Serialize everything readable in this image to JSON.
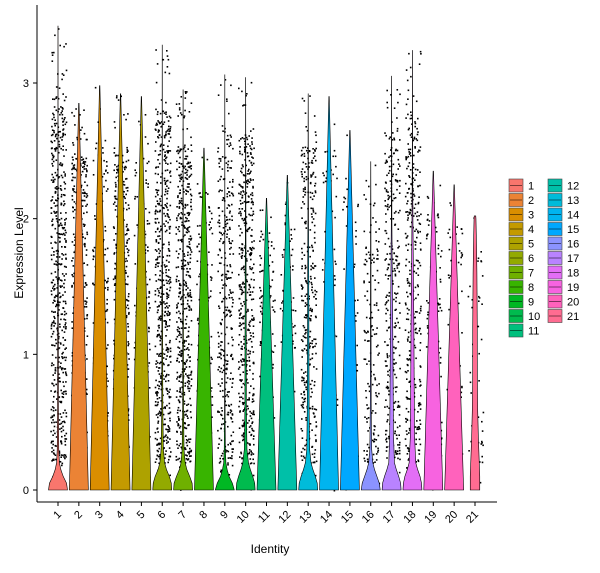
{
  "chart_data": {
    "type": "violin",
    "title": "",
    "xlabel": "Identity",
    "ylabel": "Expression Level",
    "ylim": [
      -0.1,
      3.5
    ],
    "yticks": [
      0,
      1,
      2,
      3
    ],
    "grid": false,
    "legend_position": "right",
    "categories": [
      "1",
      "2",
      "3",
      "4",
      "5",
      "6",
      "7",
      "8",
      "9",
      "10",
      "11",
      "12",
      "13",
      "14",
      "15",
      "16",
      "17",
      "18",
      "19",
      "20",
      "21"
    ],
    "colors": [
      "#F8766D",
      "#EB8335",
      "#DA8E00",
      "#C49A00",
      "#AEA200",
      "#93AA00",
      "#6FB000",
      "#38B400",
      "#00B823",
      "#00BB4E",
      "#00BF7D",
      "#00C0A8",
      "#00BBDA",
      "#00B4EF",
      "#00A8FF",
      "#8B93FF",
      "#B983FF",
      "#E36EF6",
      "#F763E0",
      "#FF62BC",
      "#FF6C91"
    ],
    "series": [
      {
        "name": "1",
        "max": 3.42,
        "violin": [
          [
            0,
            1
          ],
          [
            0.05,
            0.9
          ],
          [
            0.1,
            0.55
          ],
          [
            0.15,
            0.3
          ],
          [
            0.2,
            0.15
          ],
          [
            0.3,
            0.08
          ],
          [
            0.6,
            0.05
          ],
          [
            1.2,
            0.04
          ],
          [
            2,
            0.02
          ],
          [
            2.8,
            0.01
          ],
          [
            3.42,
            0.005
          ]
        ]
      },
      {
        "name": "2",
        "max": 2.85,
        "violin": [
          [
            0,
            1
          ],
          [
            2.85,
            0.02
          ]
        ]
      },
      {
        "name": "3",
        "max": 2.98,
        "violin": [
          [
            0,
            1
          ],
          [
            2.98,
            0.02
          ]
        ]
      },
      {
        "name": "4",
        "max": 2.92,
        "violin": [
          [
            0,
            1
          ],
          [
            2.92,
            0.02
          ]
        ]
      },
      {
        "name": "5",
        "max": 2.9,
        "violin": [
          [
            0,
            1
          ],
          [
            2.9,
            0.02
          ]
        ]
      },
      {
        "name": "6",
        "max": 3.28,
        "violin": [
          [
            0,
            1
          ],
          [
            0.05,
            0.95
          ],
          [
            0.1,
            0.75
          ],
          [
            0.15,
            0.45
          ],
          [
            0.2,
            0.25
          ],
          [
            0.3,
            0.12
          ],
          [
            0.6,
            0.06
          ],
          [
            1.2,
            0.04
          ],
          [
            2,
            0.02
          ],
          [
            3.28,
            0.005
          ]
        ]
      },
      {
        "name": "7",
        "max": 2.95,
        "violin": [
          [
            0,
            1
          ],
          [
            0.05,
            0.95
          ],
          [
            0.1,
            0.7
          ],
          [
            0.15,
            0.4
          ],
          [
            0.2,
            0.22
          ],
          [
            0.3,
            0.1
          ],
          [
            0.6,
            0.05
          ],
          [
            1.2,
            0.04
          ],
          [
            2,
            0.02
          ],
          [
            2.95,
            0.005
          ]
        ]
      },
      {
        "name": "8",
        "max": 2.52,
        "violin": [
          [
            0,
            1
          ],
          [
            2.52,
            0.02
          ]
        ]
      },
      {
        "name": "9",
        "max": 3.06,
        "violin": [
          [
            0,
            1
          ],
          [
            0.05,
            0.8
          ],
          [
            0.1,
            0.45
          ],
          [
            0.15,
            0.25
          ],
          [
            0.2,
            0.12
          ],
          [
            0.3,
            0.06
          ],
          [
            0.6,
            0.03
          ],
          [
            1.2,
            0.02
          ],
          [
            2,
            0.01
          ],
          [
            3.06,
            0.005
          ]
        ]
      },
      {
        "name": "10",
        "max": 3.04,
        "violin": [
          [
            0,
            1
          ],
          [
            0.05,
            0.95
          ],
          [
            0.1,
            0.75
          ],
          [
            0.15,
            0.5
          ],
          [
            0.2,
            0.3
          ],
          [
            0.3,
            0.14
          ],
          [
            0.6,
            0.08
          ],
          [
            1.0,
            0.07
          ],
          [
            1.5,
            0.05
          ],
          [
            2.2,
            0.02
          ],
          [
            3.04,
            0.005
          ]
        ]
      },
      {
        "name": "11",
        "max": 2.15,
        "violin": [
          [
            0,
            1
          ],
          [
            2.15,
            0.02
          ]
        ]
      },
      {
        "name": "12",
        "max": 2.32,
        "violin": [
          [
            0,
            1
          ],
          [
            2.32,
            0.02
          ]
        ]
      },
      {
        "name": "13",
        "max": 2.92,
        "violin": [
          [
            0,
            1
          ],
          [
            0.05,
            0.95
          ],
          [
            0.1,
            0.75
          ],
          [
            0.15,
            0.5
          ],
          [
            0.2,
            0.3
          ],
          [
            0.3,
            0.15
          ],
          [
            0.6,
            0.1
          ],
          [
            1.0,
            0.08
          ],
          [
            1.5,
            0.06
          ],
          [
            2.0,
            0.03
          ],
          [
            2.92,
            0.005
          ]
        ]
      },
      {
        "name": "14",
        "max": 2.9,
        "violin": [
          [
            0,
            1
          ],
          [
            2.9,
            0.02
          ]
        ]
      },
      {
        "name": "15",
        "max": 2.65,
        "violin": [
          [
            0,
            1
          ],
          [
            2.65,
            0.02
          ]
        ]
      },
      {
        "name": "16",
        "max": 2.42,
        "violin": [
          [
            0,
            1
          ],
          [
            0.05,
            0.9
          ],
          [
            0.1,
            0.65
          ],
          [
            0.15,
            0.4
          ],
          [
            0.2,
            0.22
          ],
          [
            0.3,
            0.1
          ],
          [
            0.6,
            0.05
          ],
          [
            1.2,
            0.03
          ],
          [
            2,
            0.02
          ],
          [
            2.42,
            0.005
          ]
        ]
      },
      {
        "name": "17",
        "max": 3.05,
        "violin": [
          [
            0,
            1
          ],
          [
            0.05,
            0.95
          ],
          [
            0.1,
            0.75
          ],
          [
            0.15,
            0.5
          ],
          [
            0.2,
            0.3
          ],
          [
            0.4,
            0.2
          ],
          [
            0.8,
            0.16
          ],
          [
            1.2,
            0.12
          ],
          [
            1.6,
            0.07
          ],
          [
            2.0,
            0.03
          ],
          [
            3.05,
            0.005
          ]
        ]
      },
      {
        "name": "18",
        "max": 3.24,
        "violin": [
          [
            0,
            1
          ],
          [
            0.05,
            0.95
          ],
          [
            0.1,
            0.8
          ],
          [
            0.15,
            0.55
          ],
          [
            0.2,
            0.35
          ],
          [
            0.4,
            0.22
          ],
          [
            0.8,
            0.18
          ],
          [
            1.2,
            0.15
          ],
          [
            1.6,
            0.1
          ],
          [
            2.0,
            0.05
          ],
          [
            2.4,
            0.02
          ],
          [
            3.24,
            0.005
          ]
        ]
      },
      {
        "name": "19",
        "max": 2.35,
        "violin": [
          [
            0,
            1
          ],
          [
            2.35,
            0.02
          ]
        ]
      },
      {
        "name": "20",
        "max": 2.25,
        "violin": [
          [
            0,
            1
          ],
          [
            2.25,
            0.02
          ]
        ]
      },
      {
        "name": "21",
        "max": 2.02,
        "violin": [
          [
            0,
            0.5
          ],
          [
            0.1,
            0.5
          ],
          [
            0.2,
            0.45
          ],
          [
            0.4,
            0.35
          ],
          [
            0.6,
            0.28
          ],
          [
            0.8,
            0.25
          ],
          [
            1.0,
            0.24
          ],
          [
            1.2,
            0.24
          ],
          [
            1.4,
            0.22
          ],
          [
            1.6,
            0.2
          ],
          [
            1.8,
            0.16
          ],
          [
            2.0,
            0.1
          ],
          [
            2.02,
            0.08
          ]
        ]
      }
    ],
    "points": [
      0.95,
      0.72,
      0.28,
      0.72,
      0.25,
      0.95,
      0.92,
      0.22,
      0.55,
      0.82,
      0.22,
      0.08,
      0.55,
      0.08,
      0.05,
      0.22,
      0.55,
      0.62,
      0.22,
      0.08,
      0.02
    ]
  }
}
